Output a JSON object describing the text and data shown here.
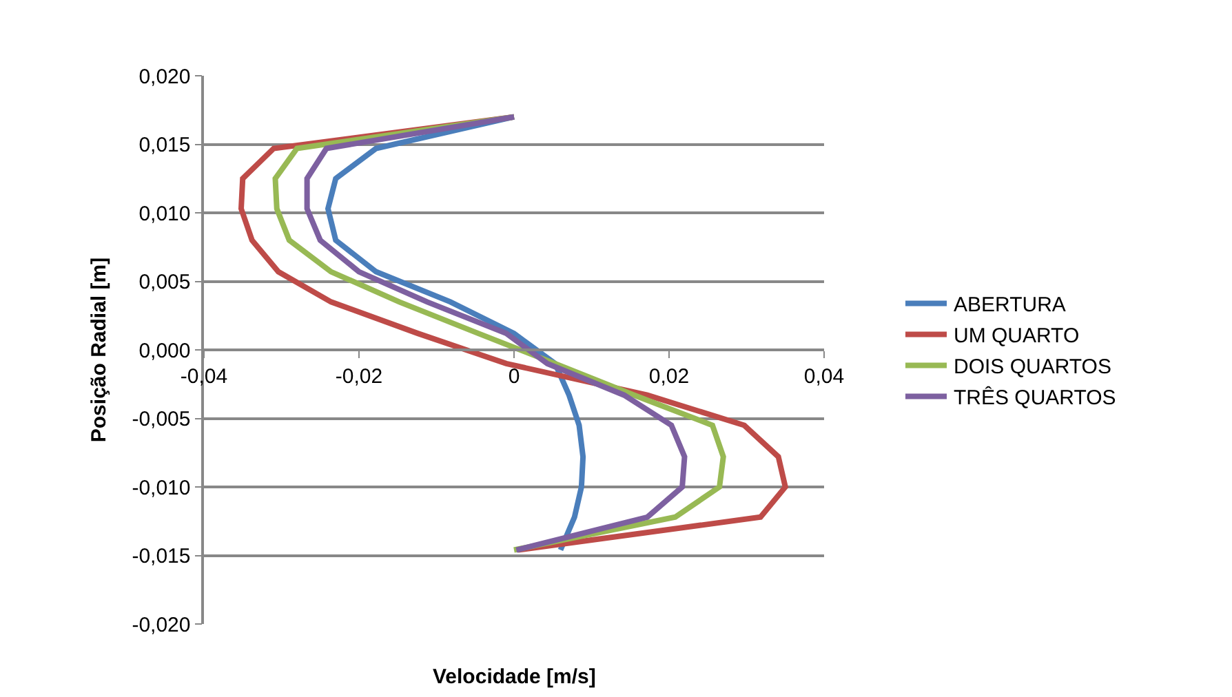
{
  "chart_data": {
    "type": "line",
    "xlabel": "Velocidade [m/s]",
    "ylabel": "Posição Radial [m]",
    "xlim": [
      -0.04,
      0.04
    ],
    "xticks": [
      {
        "value": -0.04,
        "label": "-0,04"
      },
      {
        "value": -0.02,
        "label": "-0,02"
      },
      {
        "value": 0,
        "label": "0"
      },
      {
        "value": 0.02,
        "label": "0,02"
      },
      {
        "value": 0.04,
        "label": "0,04"
      }
    ],
    "ylim": [
      -0.02,
      0.02
    ],
    "yticks": [
      {
        "value": -0.02,
        "label": "-0,020"
      },
      {
        "value": -0.015,
        "label": "-0,015"
      },
      {
        "value": -0.01,
        "label": "-0,010"
      },
      {
        "value": -0.005,
        "label": "-0,005"
      },
      {
        "value": 0,
        "label": "0,000"
      },
      {
        "value": 0.005,
        "label": "0,005"
      },
      {
        "value": 0.01,
        "label": "0,010"
      },
      {
        "value": 0.015,
        "label": "0,015"
      },
      {
        "value": 0.02,
        "label": "0,020"
      }
    ],
    "grid": "y",
    "legend": "right",
    "marker": "none",
    "line_style": "solid",
    "series": [
      {
        "name": "ABERTURA",
        "color": "#4a7ebb",
        "x": [
          0,
          -0.0178,
          -0.023,
          -0.024,
          -0.023,
          -0.0178,
          -0.0082,
          0,
          0.0053,
          0.0071,
          0.0084,
          0.0089,
          0.0087,
          0.0078,
          0.006
        ],
        "values": [
          0.017,
          0.0147,
          0.0125,
          0.0103,
          0.008,
          0.0057,
          0.0035,
          0.0012,
          -0.001,
          -0.0033,
          -0.0055,
          -0.0078,
          -0.01,
          -0.0122,
          -0.0146
        ]
      },
      {
        "name": "UM QUARTO",
        "color": "#be4b48",
        "x": [
          0,
          -0.031,
          -0.035,
          -0.0352,
          -0.0338,
          -0.0304,
          -0.0236,
          -0.0124,
          -0.001,
          0.0172,
          0.0297,
          0.0341,
          0.035,
          0.0318,
          0.0005
        ],
        "values": [
          0.017,
          0.0147,
          0.0125,
          0.0103,
          0.008,
          0.0057,
          0.0035,
          0.0012,
          -0.001,
          -0.0033,
          -0.0055,
          -0.0078,
          -0.01,
          -0.0122,
          -0.0146
        ]
      },
      {
        "name": "DOIS QUARTOS",
        "color": "#98b954",
        "x": [
          0,
          -0.028,
          -0.0308,
          -0.0306,
          -0.029,
          -0.0236,
          -0.0148,
          -0.0046,
          0.0053,
          0.0155,
          0.0256,
          0.027,
          0.0265,
          0.0208,
          0
        ],
        "values": [
          0.017,
          0.0147,
          0.0125,
          0.0103,
          0.008,
          0.0057,
          0.0035,
          0.0012,
          -0.001,
          -0.0033,
          -0.0055,
          -0.0078,
          -0.01,
          -0.0122,
          -0.0146
        ]
      },
      {
        "name": "TRÊS QUARTOS",
        "color": "#7d60a0",
        "x": [
          0,
          -0.0242,
          -0.0267,
          -0.0267,
          -0.025,
          -0.02,
          -0.0112,
          -0.001,
          0.0043,
          0.0142,
          0.0203,
          0.022,
          0.0217,
          0.0172,
          0.0003
        ],
        "values": [
          0.017,
          0.0147,
          0.0125,
          0.0103,
          0.008,
          0.0057,
          0.0035,
          0.0012,
          -0.001,
          -0.0033,
          -0.0055,
          -0.0078,
          -0.01,
          -0.0122,
          -0.0146
        ]
      }
    ]
  }
}
